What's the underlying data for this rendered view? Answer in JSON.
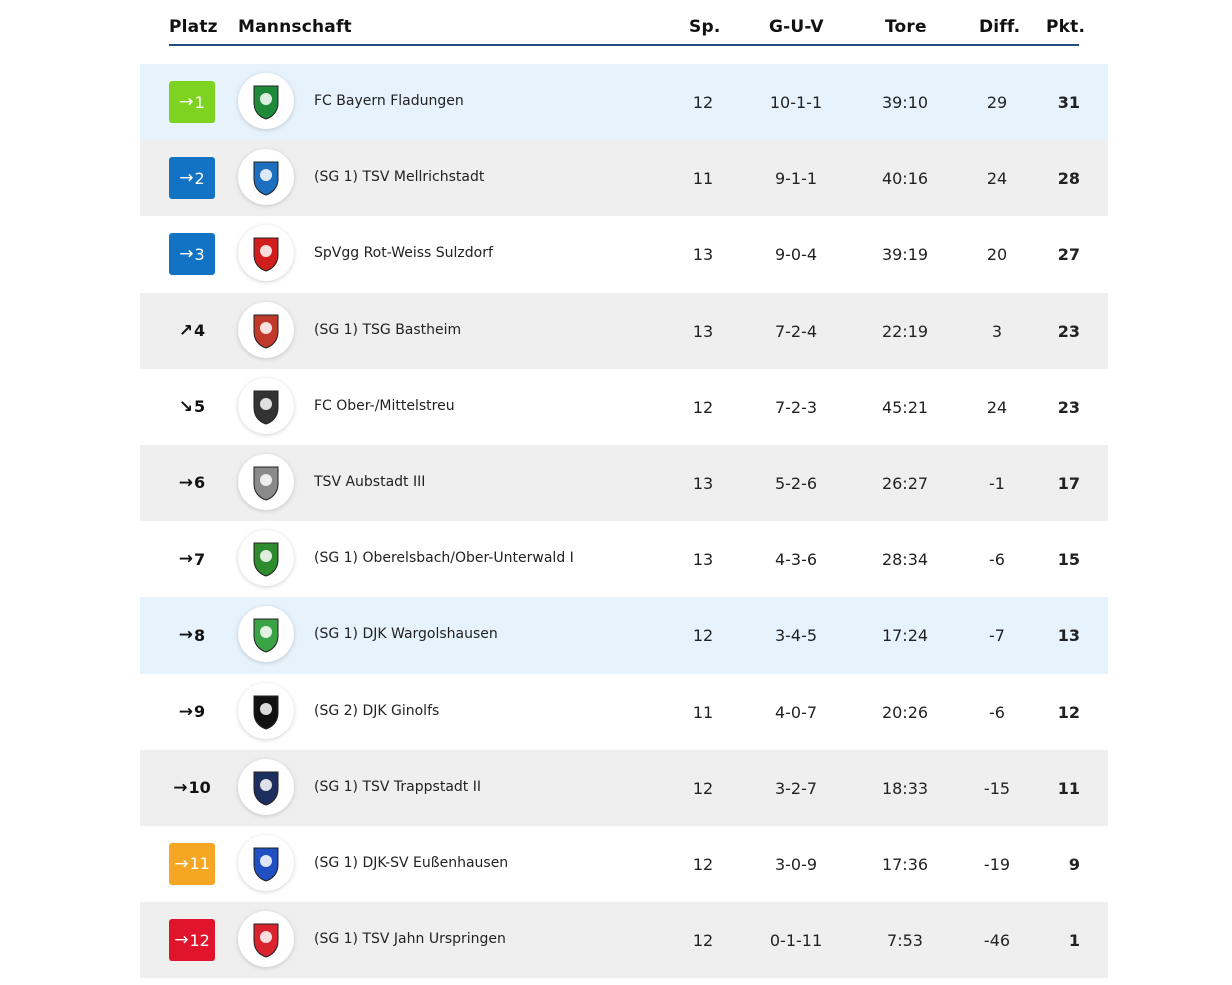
{
  "headers": {
    "platz": "Platz",
    "mannschaft": "Mannschaft",
    "sp": "Sp.",
    "guv": "G-U-V",
    "tore": "Tore",
    "diff": "Diff.",
    "pkt": "Pkt."
  },
  "colors": {
    "green": "#7ed321",
    "blue": "#1273c4",
    "orange": "#f5a623",
    "red": "#e0142b",
    "header_line": "#1f4f86",
    "row_alt": "#efefef",
    "row_highlight": "#e6f2fc"
  },
  "rows": [
    {
      "trend": "→",
      "rank": "1",
      "badge": "green",
      "team": "FC Bayern Fladungen",
      "sp": "12",
      "guv": "10-1-1",
      "tore": "39:10",
      "diff": "29",
      "pkt": "31",
      "logo_icon": "fc-bayern-fladungen-crest-icon",
      "logo_color": "#1e8a3a"
    },
    {
      "trend": "→",
      "rank": "2",
      "badge": "blue",
      "team": "(SG 1) TSV Mellrichstadt",
      "sp": "11",
      "guv": "9-1-1",
      "tore": "40:16",
      "diff": "24",
      "pkt": "28",
      "logo_icon": "tsv-mellrichstadt-crest-icon",
      "logo_color": "#1f6fc0"
    },
    {
      "trend": "→",
      "rank": "3",
      "badge": "blue",
      "team": "SpVgg Rot-Weiss Sulzdorf",
      "sp": "13",
      "guv": "9-0-4",
      "tore": "39:19",
      "diff": "20",
      "pkt": "27",
      "logo_icon": "spvgg-sulzdorf-crest-icon",
      "logo_color": "#d21d1d"
    },
    {
      "trend": "↗",
      "rank": "4",
      "badge": "",
      "team": "(SG 1) TSG Bastheim",
      "sp": "13",
      "guv": "7-2-4",
      "tore": "22:19",
      "diff": "3",
      "pkt": "23",
      "logo_icon": "tsg-bastheim-crest-icon",
      "logo_color": "#c0392b"
    },
    {
      "trend": "↘",
      "rank": "5",
      "badge": "",
      "team": "FC Ober-/Mittelstreu",
      "sp": "12",
      "guv": "7-2-3",
      "tore": "45:21",
      "diff": "24",
      "pkt": "23",
      "logo_icon": "fc-ober-mittelstreu-crest-icon",
      "logo_color": "#333333"
    },
    {
      "trend": "→",
      "rank": "6",
      "badge": "",
      "team": "TSV Aubstadt III",
      "sp": "13",
      "guv": "5-2-6",
      "tore": "26:27",
      "diff": "-1",
      "pkt": "17",
      "logo_icon": "tsv-aubstadt-crest-icon",
      "logo_color": "#8a8a8a"
    },
    {
      "trend": "→",
      "rank": "7",
      "badge": "",
      "team": "(SG 1) Oberelsbach/Ober-Unterwald I",
      "sp": "13",
      "guv": "4-3-6",
      "tore": "28:34",
      "diff": "-6",
      "pkt": "15",
      "logo_icon": "tsv-oberelsbach-crest-icon",
      "logo_color": "#2e8b2e"
    },
    {
      "trend": "→",
      "rank": "8",
      "badge": "",
      "team": "(SG 1) DJK Wargolshausen",
      "sp": "12",
      "guv": "3-4-5",
      "tore": "17:24",
      "diff": "-7",
      "pkt": "13",
      "logo_icon": "djk-wargolshausen-crest-icon",
      "logo_color": "#3aa345"
    },
    {
      "trend": "→",
      "rank": "9",
      "badge": "",
      "team": "(SG 2) DJK Ginolfs",
      "sp": "11",
      "guv": "4-0-7",
      "tore": "20:26",
      "diff": "-6",
      "pkt": "12",
      "logo_icon": "djk-ginolfs-crest-icon",
      "logo_color": "#111111"
    },
    {
      "trend": "→",
      "rank": "10",
      "badge": "",
      "team": "(SG 1) TSV Trappstadt II",
      "sp": "12",
      "guv": "3-2-7",
      "tore": "18:33",
      "diff": "-15",
      "pkt": "11",
      "logo_icon": "tsv-trappstadt-crest-icon",
      "logo_color": "#1c2f5e"
    },
    {
      "trend": "→",
      "rank": "11",
      "badge": "orange",
      "team": "(SG 1) DJK-SV Eußenhausen",
      "sp": "12",
      "guv": "3-0-9",
      "tore": "17:36",
      "diff": "-19",
      "pkt": "9",
      "logo_icon": "djk-sv-eussenhausen-crest-icon",
      "logo_color": "#1f4fc0"
    },
    {
      "trend": "→",
      "rank": "12",
      "badge": "red",
      "team": "(SG 1) TSV Jahn Urspringen",
      "sp": "12",
      "guv": "0-1-11",
      "tore": "7:53",
      "diff": "-46",
      "pkt": "1",
      "logo_icon": "tsv-jahn-urspringen-crest-icon",
      "logo_color": "#d9232d"
    }
  ]
}
